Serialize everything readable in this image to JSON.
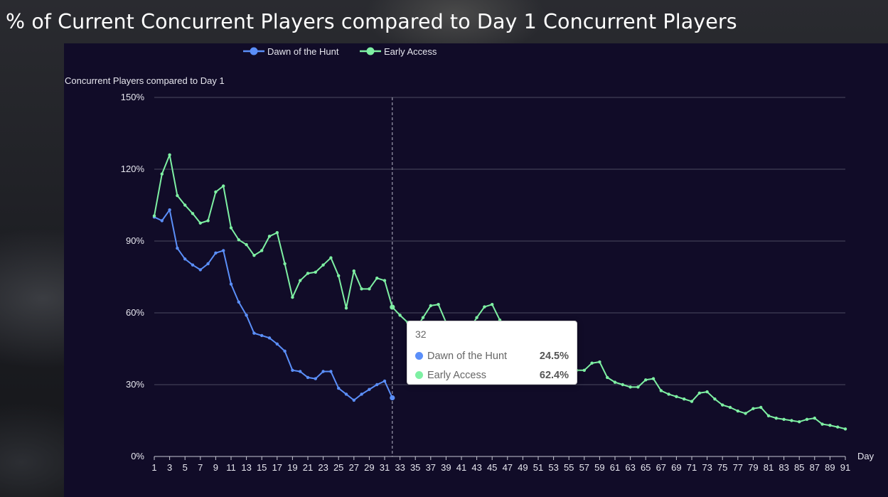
{
  "title": "% of Current Concurrent Players compared to Day 1 Concurrent Players",
  "colors": {
    "dawn": "#5b8ff9",
    "early": "#7ef0a3",
    "panel_bg": "#110c28",
    "grid": "#4a4a60",
    "text": "#e6e6ee"
  },
  "legend": [
    {
      "name": "Dawn of the Hunt",
      "color": "#5b8ff9"
    },
    {
      "name": "Early Access",
      "color": "#7ef0a3"
    }
  ],
  "tooltip": {
    "header": "32",
    "rows": [
      {
        "name": "Dawn of the Hunt",
        "value": "24.5%",
        "color": "#5b8ff9"
      },
      {
        "name": "Early Access",
        "value": "62.4%",
        "color": "#7ef0a3"
      }
    ]
  },
  "chart_data": {
    "type": "line",
    "title": "% of Current Concurrent Players compared to Day 1 Concurrent Players",
    "xlabel": "Day",
    "ylabel": "Concurrent Players compared to Day 1",
    "ylim": [
      0,
      150
    ],
    "xlim": [
      1,
      91
    ],
    "x_tick_labels": [
      "1",
      "3",
      "5",
      "7",
      "9",
      "11",
      "13",
      "15",
      "17",
      "19",
      "21",
      "23",
      "25",
      "27",
      "29",
      "31",
      "33",
      "35",
      "37",
      "39",
      "41",
      "43",
      "45",
      "47",
      "49",
      "51",
      "53",
      "55",
      "57",
      "59",
      "61",
      "63",
      "65",
      "67",
      "69",
      "71",
      "73",
      "75",
      "77",
      "79",
      "81",
      "83",
      "85",
      "87",
      "89",
      "91"
    ],
    "y_tick_labels": [
      "0%",
      "30%",
      "60%",
      "90%",
      "120%",
      "150%"
    ],
    "y_ticks": [
      0,
      30,
      60,
      90,
      120,
      150
    ],
    "grid": true,
    "legend_position": "top",
    "highlighted_day": 32,
    "series": [
      {
        "name": "Dawn of the Hunt",
        "color": "#5b8ff9",
        "values": [
          100,
          98.5,
          103,
          87,
          82.5,
          80,
          78,
          80.5,
          85,
          86,
          72,
          64.5,
          59,
          51.5,
          50.5,
          49.5,
          47,
          44,
          36,
          35.5,
          33,
          32.5,
          35.5,
          35.5,
          28.5,
          26,
          23.5,
          26,
          28,
          30,
          31.5,
          24.5
        ]
      },
      {
        "name": "Early Access",
        "color": "#7ef0a3",
        "values": [
          100.5,
          118,
          126,
          109,
          105,
          101.5,
          97.5,
          98.5,
          110.5,
          113,
          95.5,
          90.5,
          88.5,
          84,
          86,
          92,
          93.5,
          80.5,
          66.5,
          73.5,
          76.5,
          77,
          80,
          83,
          75.5,
          62,
          77.5,
          70,
          70,
          74.5,
          73.5,
          62.4,
          59,
          56,
          53,
          58,
          63,
          63.5,
          56,
          52,
          51,
          53,
          58,
          62.5,
          63.5,
          57,
          54,
          51.5,
          48,
          44,
          43,
          42,
          43,
          40,
          38.5,
          36,
          36,
          39,
          39.5,
          33,
          31,
          30,
          29,
          29,
          32,
          32.5,
          27.5,
          26,
          25,
          24,
          23,
          26.5,
          27,
          24,
          21.5,
          20.5,
          19,
          18,
          20,
          20.5,
          17,
          16,
          15.5,
          15,
          14.5,
          15.5,
          16,
          13.5,
          13,
          12.3,
          11.5
        ]
      }
    ]
  }
}
